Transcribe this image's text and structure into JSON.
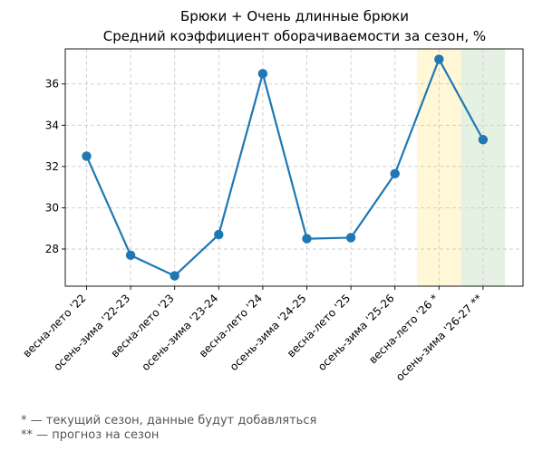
{
  "chart_data": {
    "type": "line",
    "title": [
      "Брюки + Очень длинные брюки",
      "Средний коэффициент оборачиваемости за сезон, %"
    ],
    "xlabel": "",
    "ylabel": "",
    "categories": [
      "весна-лето '22",
      "осень-зима '22-23",
      "весна-лето '23",
      "осень-зима '23-24",
      "весна-лето '24",
      "осень-зима '24-25",
      "весна-лето '25",
      "осень-зима '25-26",
      "весна-лето '26 *",
      "осень-зима '26-27 **"
    ],
    "series": [
      {
        "values": [
          32.5,
          27.7,
          26.7,
          28.7,
          36.5,
          28.5,
          28.55,
          31.65,
          37.2,
          33.3
        ]
      }
    ],
    "yticks": [
      28,
      30,
      32,
      34,
      36
    ],
    "ylim": [
      26.2,
      37.7
    ],
    "grid": true,
    "highlights": [
      {
        "category": "весна-лето '26 *",
        "color": "#fff7d6"
      },
      {
        "category": "осень-зима '26-27 **",
        "color": "#e5f2e3"
      }
    ],
    "line_color": "#1f77b4"
  },
  "footnotes": [
    "* — текущий сезон, данные будут добавляться",
    "** — прогноз на сезон"
  ]
}
